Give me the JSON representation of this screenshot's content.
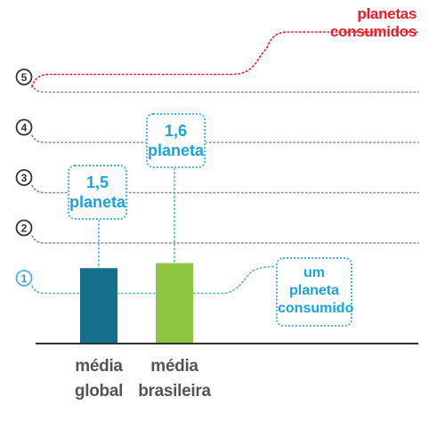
{
  "chart_data": {
    "type": "bar",
    "title": "planetas consumidos",
    "categories": [
      [
        "média",
        "global"
      ],
      [
        "média",
        "brasileira"
      ]
    ],
    "values": [
      1.5,
      1.6
    ],
    "ylim": [
      0,
      5.6
    ],
    "yticks": [
      "1",
      "2",
      "3",
      "4",
      "5"
    ],
    "grid": true,
    "reference_line": {
      "value": 1,
      "label": [
        "um",
        "planeta",
        "consumido"
      ]
    },
    "data_labels": [
      [
        "1,5",
        "planeta"
      ],
      [
        "1,6",
        "planeta"
      ]
    ],
    "colors": {
      "bar_global": "#146f8c",
      "bar_bras": "#8dc63f",
      "title": "#e4202a",
      "accent": "#1aa3dc",
      "grid": "#8a8a8a",
      "axis": "#333333"
    }
  }
}
